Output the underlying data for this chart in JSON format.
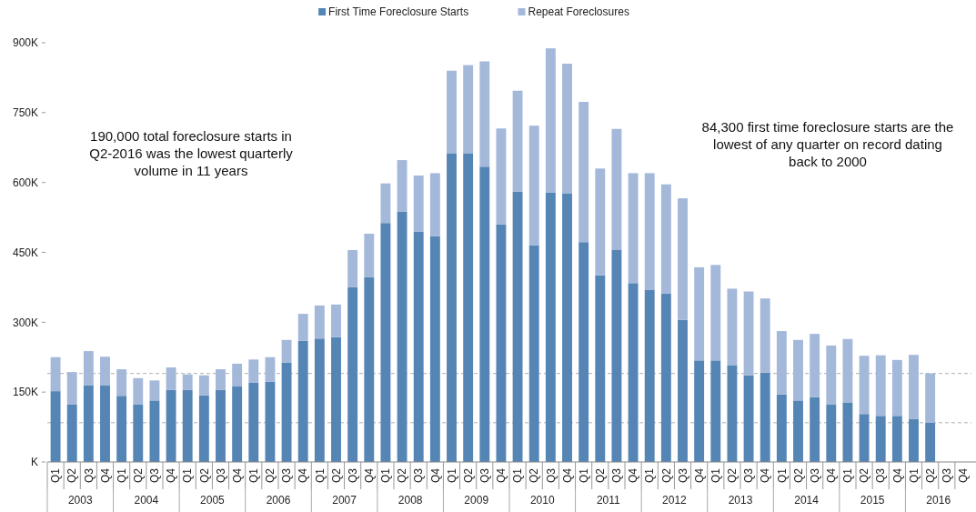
{
  "chart_data": {
    "type": "bar",
    "stacked": true,
    "categories": [
      "Q1",
      "Q2",
      "Q3",
      "Q4",
      "Q1",
      "Q2",
      "Q3",
      "Q4",
      "Q1",
      "Q2",
      "Q3",
      "Q4",
      "Q1",
      "Q2",
      "Q3",
      "Q4",
      "Q1",
      "Q2",
      "Q3",
      "Q4",
      "Q1",
      "Q2",
      "Q3",
      "Q4",
      "Q1",
      "Q2",
      "Q3",
      "Q4",
      "Q1",
      "Q2",
      "Q3",
      "Q4",
      "Q1",
      "Q2",
      "Q3",
      "Q4",
      "Q1",
      "Q2",
      "Q3",
      "Q4",
      "Q1",
      "Q2",
      "Q3",
      "Q4",
      "Q1",
      "Q2",
      "Q3",
      "Q4",
      "Q1",
      "Q2",
      "Q3",
      "Q4",
      "Q1",
      "Q2",
      "Q3",
      "Q4"
    ],
    "series": [
      {
        "name": "First Time Foreclosure Starts",
        "color": "#5585b5",
        "values": [
          152,
          123,
          165,
          165,
          142,
          123,
          132,
          155,
          155,
          143,
          155,
          162,
          170,
          172,
          213,
          260,
          265,
          268,
          375,
          397,
          513,
          537,
          494,
          485,
          663,
          663,
          634,
          510,
          580,
          465,
          578,
          577,
          472,
          401,
          456,
          384,
          370,
          362,
          305,
          218,
          218,
          208,
          186,
          192,
          145,
          132,
          139,
          124,
          128,
          103,
          99,
          99,
          92,
          84,
          null,
          null
        ]
      },
      {
        "name": "Repeat Foreclosures",
        "color": "#a4b8da",
        "values": [
          73,
          70,
          73,
          61,
          57,
          57,
          43,
          48,
          33,
          43,
          44,
          49,
          50,
          53,
          49,
          58,
          71,
          70,
          80,
          93,
          85,
          111,
          121,
          135,
          177,
          189,
          226,
          206,
          217,
          257,
          310,
          278,
          301,
          229,
          259,
          236,
          250,
          234,
          261,
          200,
          205,
          164,
          180,
          159,
          136,
          130,
          136,
          126,
          136,
          125,
          130,
          120,
          138,
          106,
          null,
          null
        ]
      }
    ],
    "ylim": [
      0,
      900
    ],
    "yticks": [
      {
        "value": 0,
        "label": "K"
      },
      {
        "value": 150,
        "label": "150K"
      },
      {
        "value": 300,
        "label": "300K"
      },
      {
        "value": 450,
        "label": "450K"
      },
      {
        "value": 600,
        "label": "600K"
      },
      {
        "value": 750,
        "label": "750K"
      },
      {
        "value": 900,
        "label": "900K"
      }
    ],
    "ref_lines": [
      {
        "axis": "y",
        "value": 190,
        "color": "#b0b0b0",
        "line_style": "dashed"
      },
      {
        "axis": "y",
        "value": 84.3,
        "color": "#b0b0b0",
        "line_style": "dashed"
      }
    ],
    "legend": "top",
    "annotations": [
      "2003",
      "2004",
      "2005",
      "2006",
      "2007",
      "2008",
      "2009",
      "2010",
      "2011",
      "2012",
      "2013",
      "2014",
      "2015",
      "2016",
      "190,000 total foreclosure starts in\nQ2-2016 was the lowest quarterly\nvolume in 11 years",
      "84,300 first time foreclosure starts are the\nlowest of any quarter on record dating\nback to 2000"
    ]
  }
}
